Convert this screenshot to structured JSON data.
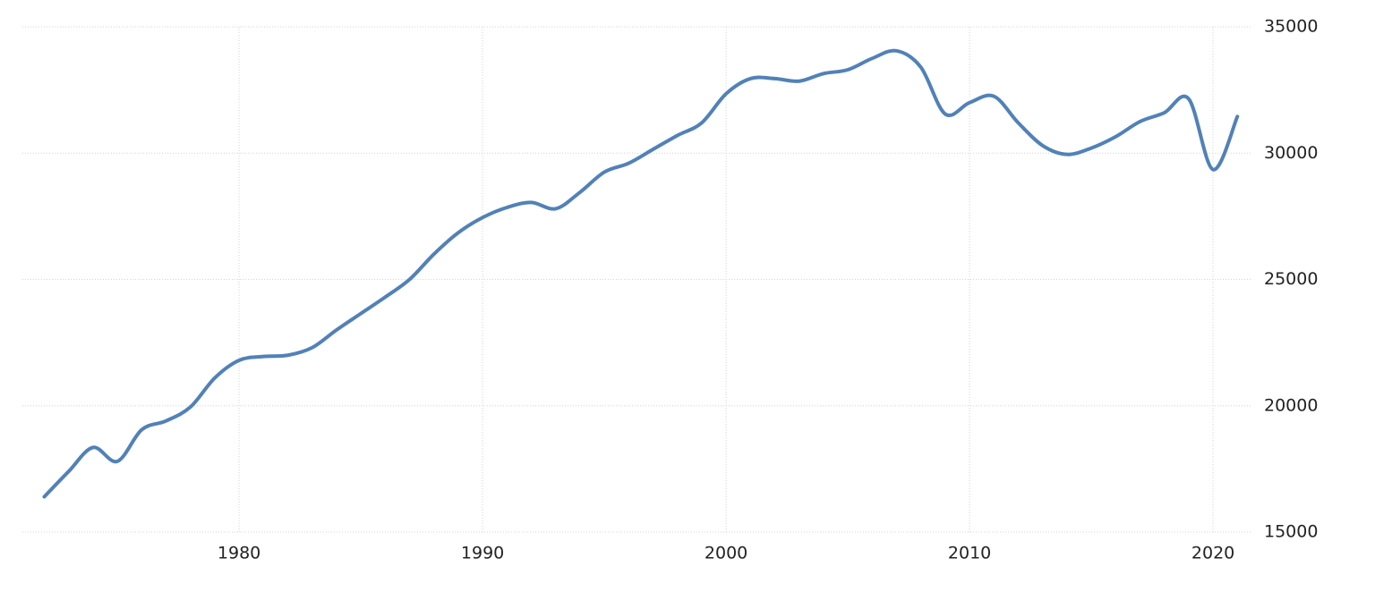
{
  "chart_data": {
    "type": "line",
    "x": [
      1972,
      1973,
      1974,
      1975,
      1976,
      1977,
      1978,
      1979,
      1980,
      1981,
      1982,
      1983,
      1984,
      1985,
      1986,
      1987,
      1988,
      1989,
      1990,
      1991,
      1992,
      1993,
      1994,
      1995,
      1996,
      1997,
      1998,
      1999,
      2000,
      2001,
      2002,
      2003,
      2004,
      2005,
      2006,
      2007,
      2008,
      2009,
      2010,
      2011,
      2012,
      2013,
      2014,
      2015,
      2016,
      2017,
      2018,
      2019,
      2020,
      2021
    ],
    "series": [
      {
        "color": "#5181b8",
        "values": [
          16400,
          17400,
          18350,
          17800,
          19050,
          19400,
          19950,
          21100,
          21800,
          21950,
          22000,
          22300,
          23000,
          23650,
          24300,
          25000,
          26000,
          26850,
          27450,
          27850,
          28050,
          27800,
          28450,
          29250,
          29600,
          30150,
          30700,
          31200,
          32350,
          32950,
          32950,
          32850,
          33150,
          33300,
          33750,
          34050,
          33400,
          31550,
          32000,
          32250,
          31200,
          30300,
          29950,
          30200,
          30650,
          31250,
          31600,
          32150,
          29350,
          31450
        ]
      }
    ],
    "xlim": [
      1971.1,
      2021.1
    ],
    "xticks": [
      1980,
      1990,
      2000,
      2010,
      2020
    ],
    "ylim": [
      15000,
      35000
    ],
    "yticks": [
      15000,
      20000,
      25000,
      30000,
      35000
    ],
    "grid": true
  }
}
